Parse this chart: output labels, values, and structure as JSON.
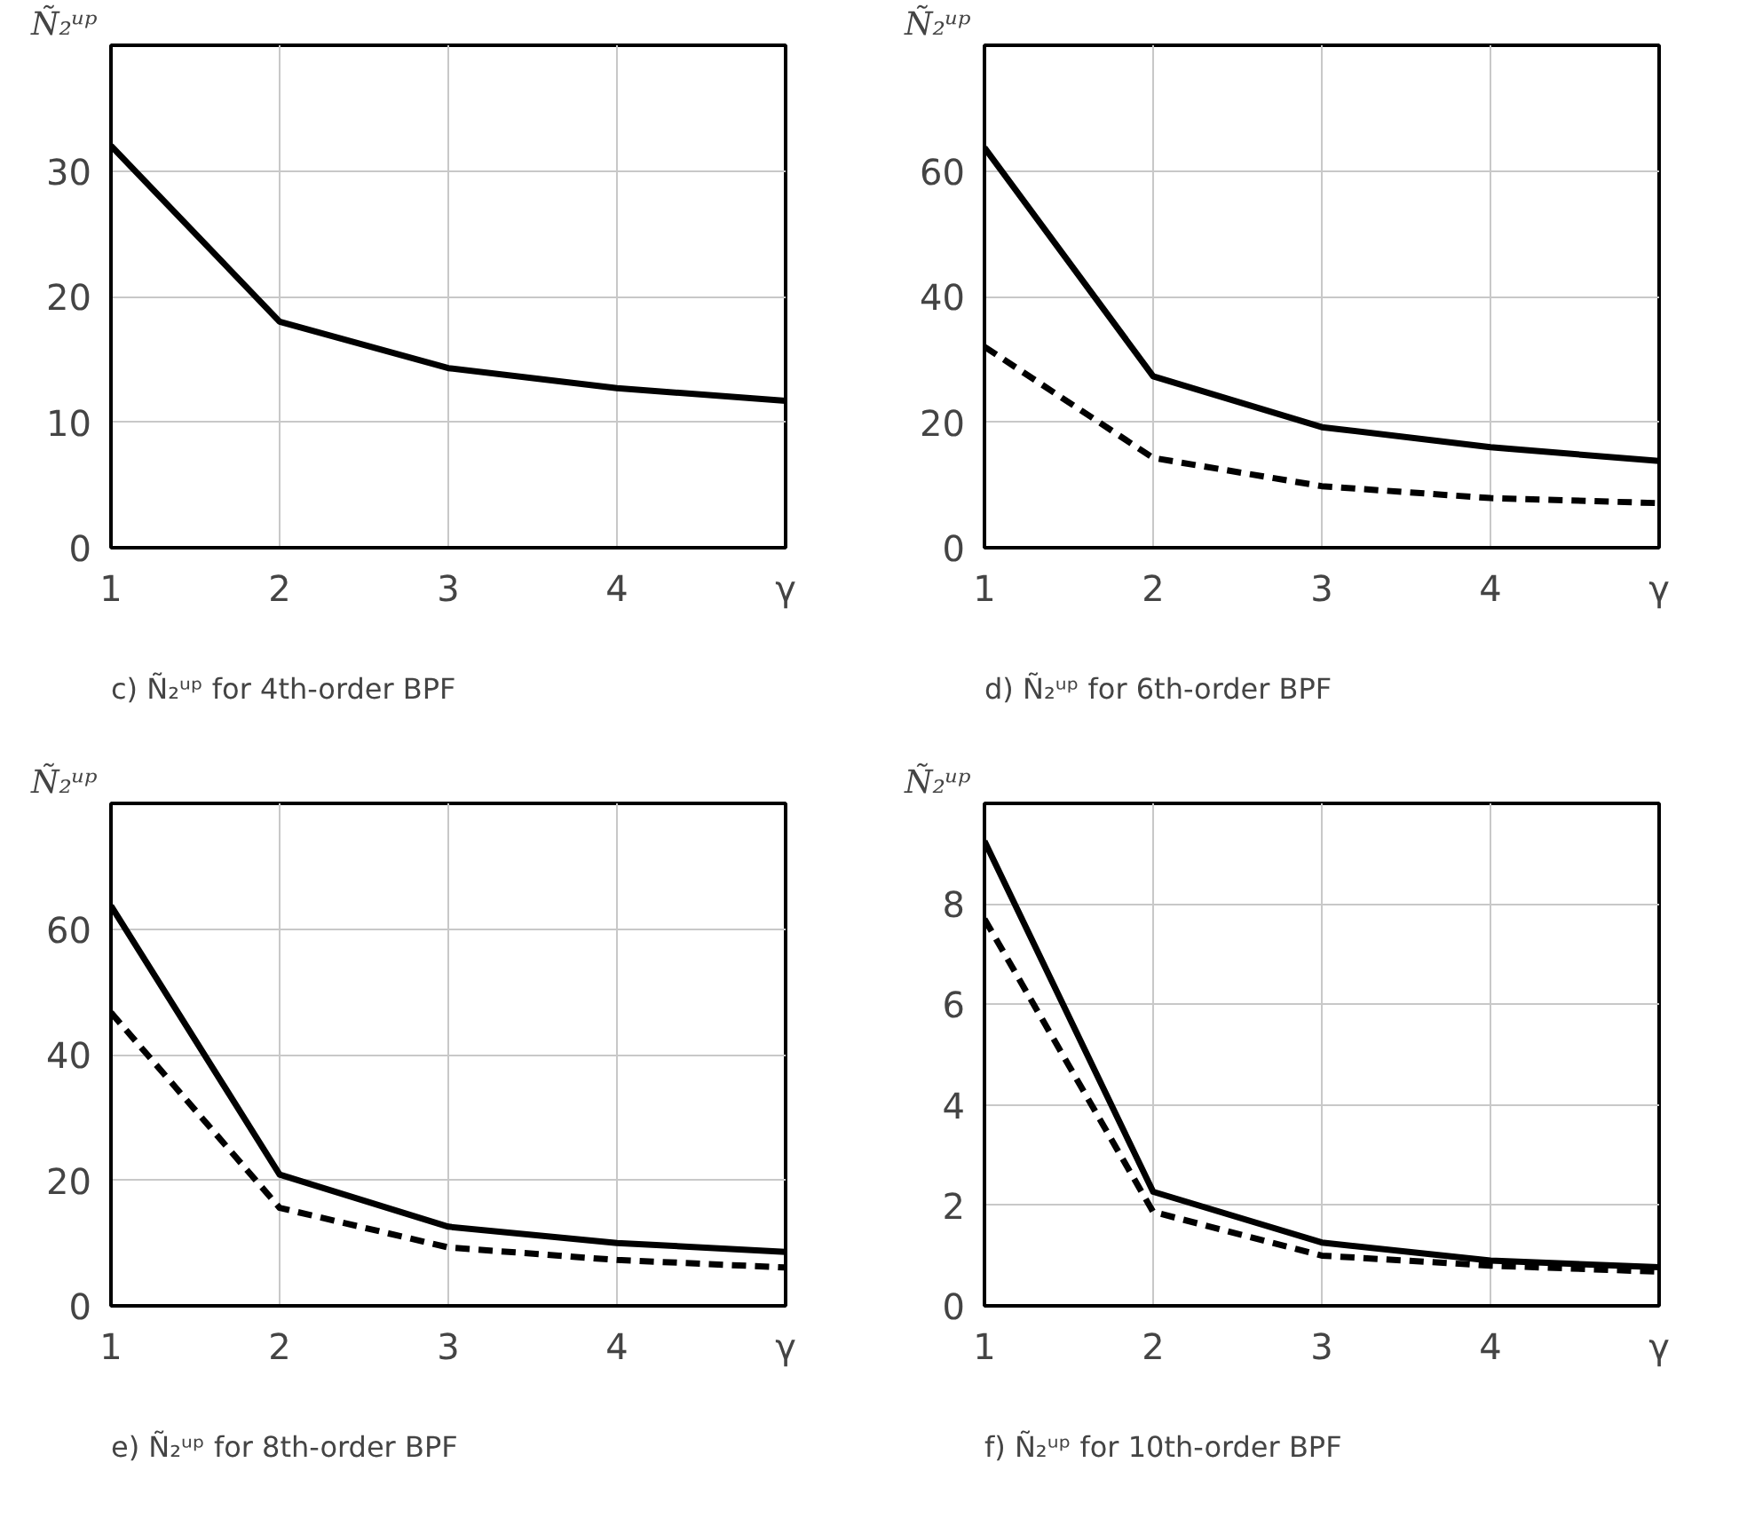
{
  "chart_data": [
    {
      "type": "line",
      "title": "c)  Ñ₂ᵘᵖ  for 4th-order BPF",
      "ylabel": "Ñ₂ᵘᵖ",
      "xlabel": "γ",
      "x": [
        1,
        2,
        3,
        4,
        5
      ],
      "xlim": [
        1,
        5
      ],
      "xticks": [
        1,
        2,
        3,
        4
      ],
      "ylim": [
        0,
        40
      ],
      "yticks": [
        0,
        10,
        20,
        30
      ],
      "grid": true,
      "series": [
        {
          "color": "#000000",
          "line_style": "solid",
          "values": [
            32,
            18,
            14.3,
            12.7,
            11.7
          ]
        }
      ]
    },
    {
      "type": "line",
      "title": "d)  Ñ₂ᵘᵖ  for 6th-order BPF",
      "ylabel": "Ñ₂ᵘᵖ",
      "xlabel": "γ",
      "x": [
        1,
        2,
        3,
        4,
        5
      ],
      "xlim": [
        1,
        5
      ],
      "xticks": [
        1,
        2,
        3,
        4
      ],
      "ylim": [
        0,
        80
      ],
      "yticks": [
        0,
        20,
        40,
        60
      ],
      "grid": true,
      "series": [
        {
          "color": "#000000",
          "line_style": "solid",
          "values": [
            63.7,
            27.3,
            19.2,
            16,
            13.8
          ]
        },
        {
          "color": "#000000",
          "line_style": "dashed",
          "values": [
            32,
            14.3,
            9.8,
            7.9,
            7.1
          ]
        }
      ]
    },
    {
      "type": "line",
      "title": "e)  Ñ₂ᵘᵖ  for 8th-order BPF",
      "ylabel": "Ñ₂ᵘᵖ",
      "xlabel": "γ",
      "x": [
        1,
        2,
        3,
        4,
        5
      ],
      "xlim": [
        1,
        5
      ],
      "xticks": [
        1,
        2,
        3,
        4
      ],
      "ylim": [
        0,
        80
      ],
      "yticks": [
        0,
        20,
        40,
        60
      ],
      "grid": true,
      "series": [
        {
          "color": "#000000",
          "line_style": "solid",
          "values": [
            63.7,
            20.9,
            12.6,
            10,
            8.6
          ]
        },
        {
          "color": "#000000",
          "line_style": "dashed",
          "values": [
            46.7,
            15.6,
            9.3,
            7.3,
            6.1
          ]
        }
      ]
    },
    {
      "type": "line",
      "title": "f)  Ñ₂ᵘᵖ  for 10th-order BPF",
      "ylabel": "Ñ₂ᵘᵖ",
      "xlabel": "γ",
      "x": [
        1,
        2,
        3,
        4,
        5
      ],
      "xlim": [
        1,
        5
      ],
      "xticks": [
        1,
        2,
        3,
        4
      ],
      "ylim": [
        0,
        10
      ],
      "yticks": [
        0,
        2,
        4,
        6,
        8
      ],
      "grid": true,
      "series": [
        {
          "color": "#000000",
          "line_style": "solid",
          "values": [
            9.25,
            2.27,
            1.26,
            0.9,
            0.77
          ]
        },
        {
          "color": "#000000",
          "line_style": "dashed",
          "values": [
            7.7,
            1.87,
            1.0,
            0.8,
            0.68
          ]
        }
      ]
    }
  ]
}
